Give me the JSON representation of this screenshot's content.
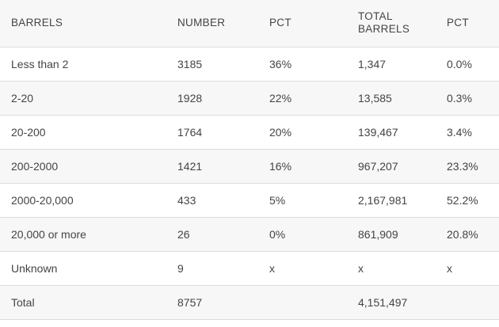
{
  "table": {
    "headers": [
      "BARRELS",
      "NUMBER",
      "PCT",
      "TOTAL BARRELS",
      "PCT"
    ],
    "rows": [
      [
        "Less than 2",
        "3185",
        "36%",
        "1,347",
        "0.0%"
      ],
      [
        "2-20",
        "1928",
        "22%",
        "13,585",
        "0.3%"
      ],
      [
        "20-200",
        "1764",
        "20%",
        "139,467",
        "3.4%"
      ],
      [
        "200-2000",
        "1421",
        "16%",
        "967,207",
        "23.3%"
      ],
      [
        "2000-20,000",
        "433",
        "5%",
        "2,167,981",
        "52.2%"
      ],
      [
        "20,000 or more",
        "26",
        "0%",
        "861,909",
        "20.8%"
      ],
      [
        "Unknown",
        "9",
        "x",
        "x",
        "x"
      ],
      [
        "Total",
        "8757",
        "",
        "4,151,497",
        ""
      ]
    ]
  }
}
